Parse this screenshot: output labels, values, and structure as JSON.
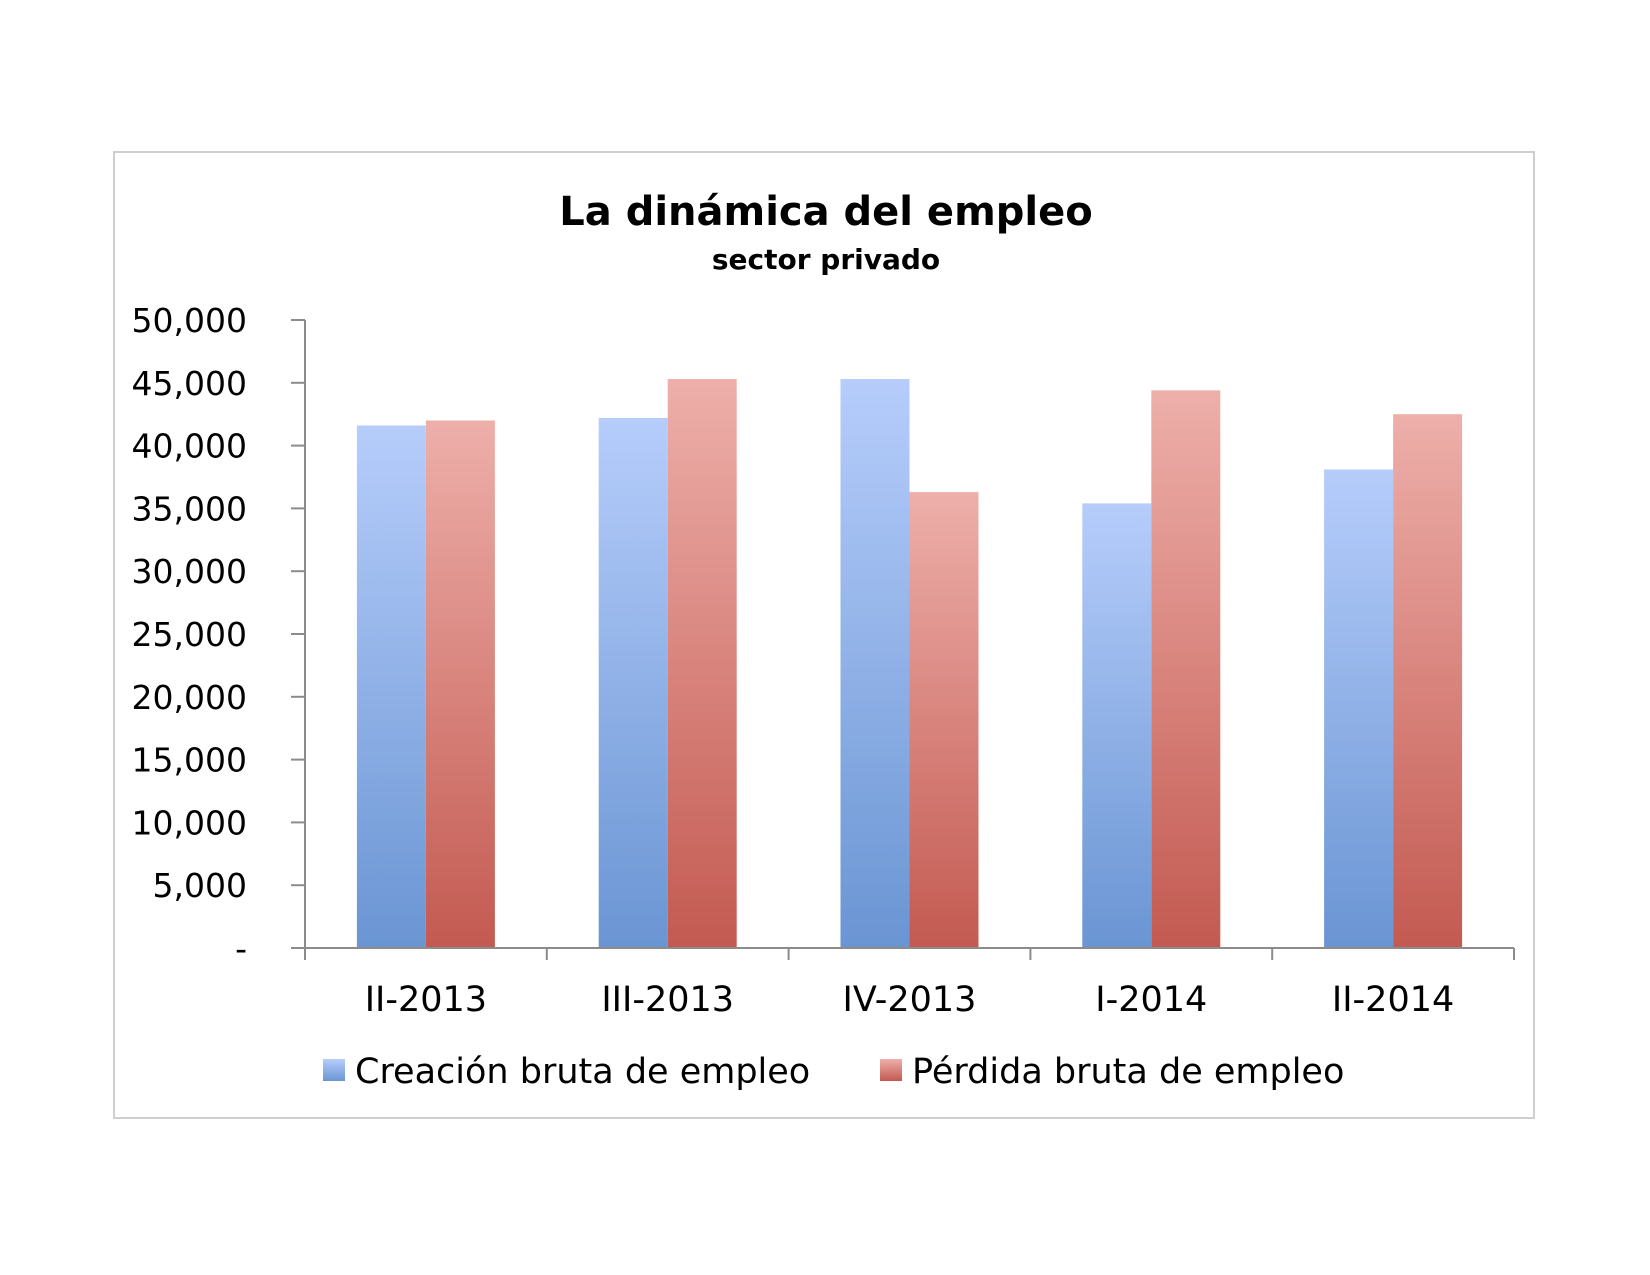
{
  "chart_data": {
    "type": "bar",
    "title": "La dinámica del empleo",
    "subtitle": "sector privado",
    "categories": [
      "II-2013",
      "III-2013",
      "IV-2013",
      "I-2014",
      "II-2014"
    ],
    "series": [
      {
        "name": "Creación bruta de empleo",
        "values": [
          41600,
          42200,
          45300,
          35400,
          38100
        ],
        "color": "#7aa0dc"
      },
      {
        "name": "Pérdida bruta de empleo",
        "values": [
          42000,
          45300,
          36300,
          44400,
          42500
        ],
        "color": "#d06a62"
      }
    ],
    "ylim": [
      0,
      50000
    ],
    "yticks": [
      0,
      5000,
      10000,
      15000,
      20000,
      25000,
      30000,
      35000,
      40000,
      45000,
      50000
    ],
    "ytick_labels": [
      "-",
      "5,000",
      "10,000",
      "15,000",
      "20,000",
      "25,000",
      "30,000",
      "35,000",
      "40,000",
      "45,000",
      "50,000"
    ],
    "xlabel": "",
    "ylabel": "",
    "grid": false,
    "legend": "bottom"
  }
}
